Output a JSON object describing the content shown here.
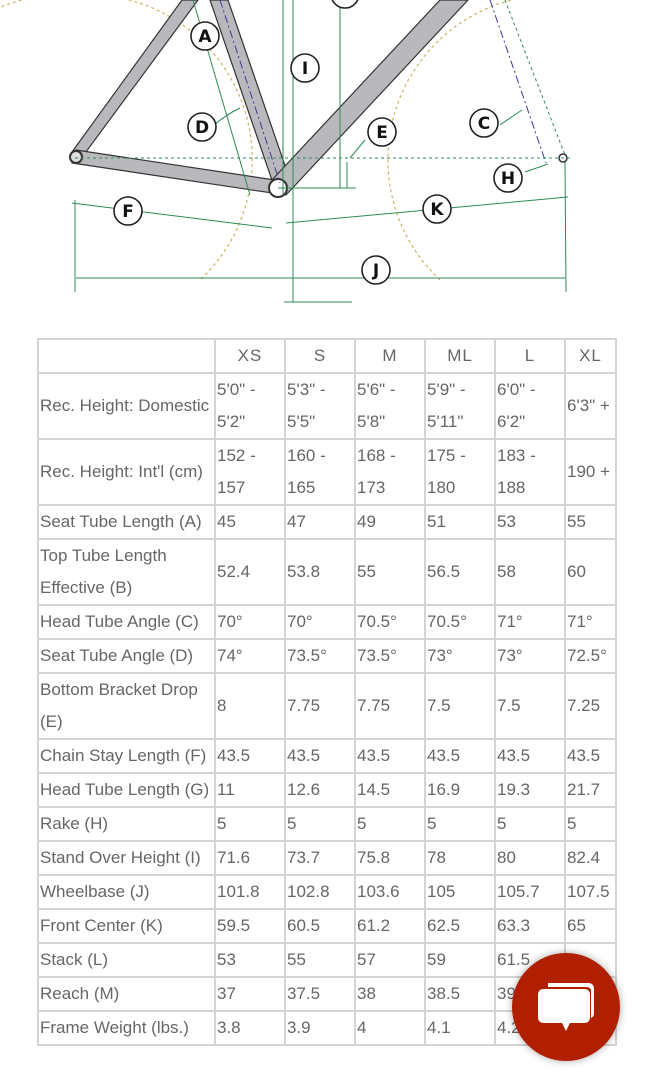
{
  "diagram": {
    "labels": [
      "A",
      "B",
      "C",
      "D",
      "E",
      "F",
      "H",
      "I",
      "J",
      "K"
    ],
    "colors": {
      "frame": "#b9b9bd",
      "dimension": "#2e8b57",
      "wheel": "#c8b560",
      "axis": "#3a3a9a"
    }
  },
  "table": {
    "columns": [
      "",
      "XS",
      "S",
      "M",
      "ML",
      "L",
      "XL"
    ],
    "rows": [
      {
        "label": "Rec. Height: Domestic",
        "values": [
          "5'0\" - 5'2\"",
          "5'3\" - 5'5\"",
          "5'6\" - 5'8\"",
          "5'9\" - 5'11\"",
          "6'0\" - 6'2\"",
          "6'3\" +"
        ]
      },
      {
        "label": "Rec. Height: Int'l (cm)",
        "values": [
          "152 - 157",
          "160 - 165",
          "168 - 173",
          "175 - 180",
          "183 - 188",
          "190 +"
        ]
      },
      {
        "label": "Seat Tube Length (A)",
        "values": [
          "45",
          "47",
          "49",
          "51",
          "53",
          "55"
        ]
      },
      {
        "label": "Top Tube Length Effective (B)",
        "values": [
          "52.4",
          "53.8",
          "55",
          "56.5",
          "58",
          "60"
        ]
      },
      {
        "label": "Head Tube Angle (C)",
        "values": [
          "70°",
          "70°",
          "70.5°",
          "70.5°",
          "71°",
          "71°"
        ]
      },
      {
        "label": "Seat Tube Angle (D)",
        "values": [
          "74°",
          "73.5°",
          "73.5°",
          "73°",
          "73°",
          "72.5°"
        ]
      },
      {
        "label": "Bottom Bracket Drop (E)",
        "values": [
          "8",
          "7.75",
          "7.75",
          "7.5",
          "7.5",
          "7.25"
        ]
      },
      {
        "label": "Chain Stay Length (F)",
        "values": [
          "43.5",
          "43.5",
          "43.5",
          "43.5",
          "43.5",
          "43.5"
        ]
      },
      {
        "label": "Head Tube Length (G)",
        "values": [
          "11",
          "12.6",
          "14.5",
          "16.9",
          "19.3",
          "21.7"
        ]
      },
      {
        "label": "Rake (H)",
        "values": [
          "5",
          "5",
          "5",
          "5",
          "5",
          "5"
        ]
      },
      {
        "label": "Stand Over Height (I)",
        "values": [
          "71.6",
          "73.7",
          "75.8",
          "78",
          "80",
          "82.4"
        ]
      },
      {
        "label": "Wheelbase (J)",
        "values": [
          "101.8",
          "102.8",
          "103.6",
          "105",
          "105.7",
          "107.5"
        ]
      },
      {
        "label": "Front Center (K)",
        "values": [
          "59.5",
          "60.5",
          "61.2",
          "62.5",
          "63.3",
          "65"
        ]
      },
      {
        "label": "Stack (L)",
        "values": [
          "53",
          "55",
          "57",
          "59",
          "61.5",
          ""
        ]
      },
      {
        "label": "Reach (M)",
        "values": [
          "37",
          "37.5",
          "38",
          "38.5",
          "39",
          ""
        ]
      },
      {
        "label": "Frame Weight (lbs.)",
        "values": [
          "3.8",
          "3.9",
          "4",
          "4.1",
          "4.2",
          ""
        ]
      }
    ]
  },
  "chat": {
    "icon": "chat-bubble-icon",
    "color": "#b01f00"
  }
}
